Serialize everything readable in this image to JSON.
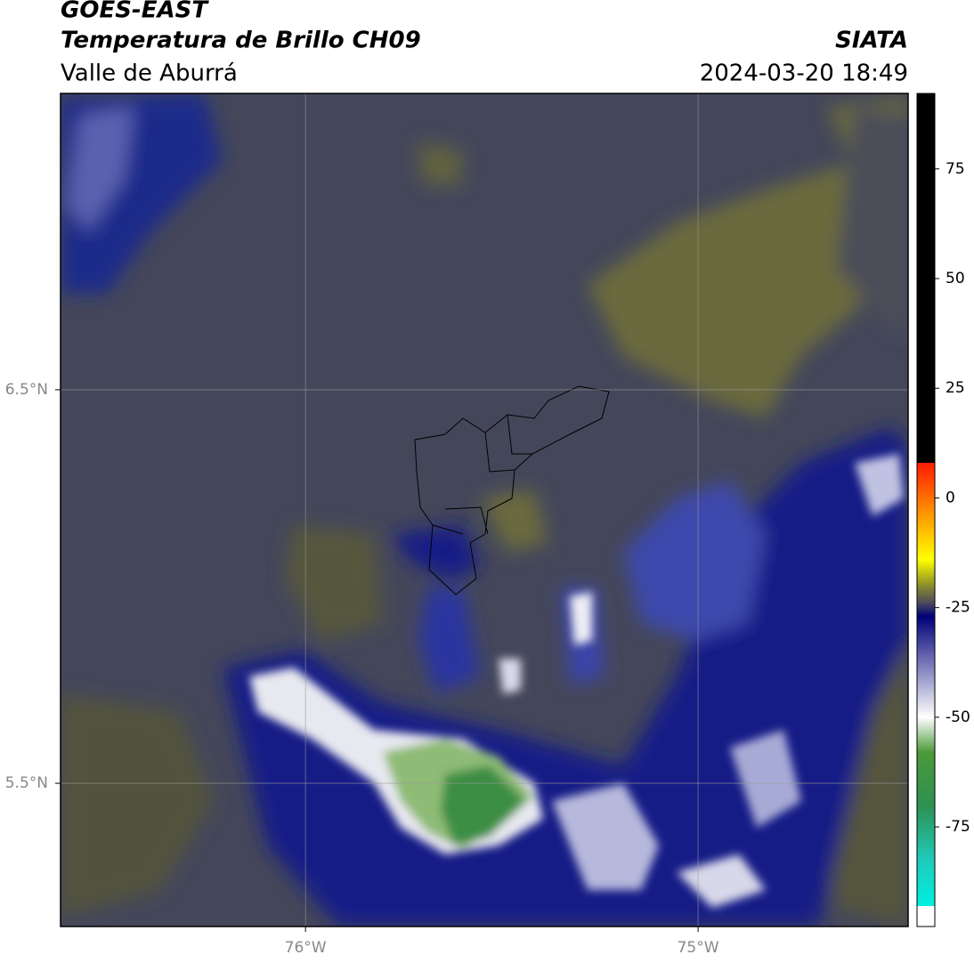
{
  "header": {
    "title": "GOES-EAST",
    "subtitle": "Temperatura de Brillo CH09",
    "region": "Valle de Aburrá",
    "source": "SIATA",
    "timestamp": "2024-03-20 18:49"
  },
  "chart_data": {
    "type": "map",
    "xlim": [
      -76.624,
      -74.465
    ],
    "ylim": [
      5.136,
      7.253
    ],
    "xticks": [
      {
        "value": -76,
        "label": "76°W"
      },
      {
        "value": -75,
        "label": "75°W"
      }
    ],
    "yticks": [
      {
        "value": 5.5,
        "label": "5.5°N"
      },
      {
        "value": 6.5,
        "label": "6.5°N"
      }
    ],
    "grid": true,
    "colorbar": {
      "lim": [
        -97.7,
        92.2
      ],
      "ticks": [
        75,
        50,
        25,
        0,
        -25,
        -50,
        -75
      ],
      "stops": [
        {
          "value": 92.2,
          "color": "#000000"
        },
        {
          "value": 8,
          "color": "#000000"
        },
        {
          "value": 8,
          "color": "#ff1a00"
        },
        {
          "value": -4,
          "color": "#ff9a00"
        },
        {
          "value": -14,
          "color": "#ffff00"
        },
        {
          "value": -20,
          "color": "#8c8c2c"
        },
        {
          "value": -24,
          "color": "#4a4a5c"
        },
        {
          "value": -27,
          "color": "#00007a"
        },
        {
          "value": -50,
          "color": "#ffffff"
        },
        {
          "value": -58,
          "color": "#4c9a3a"
        },
        {
          "value": -70,
          "color": "#2e9050"
        },
        {
          "value": -82,
          "color": "#20c8b8"
        },
        {
          "value": -93,
          "color": "#00f0e0"
        },
        {
          "value": -93,
          "color": "#ffffff"
        },
        {
          "value": -97.7,
          "color": "#ffffff"
        }
      ]
    }
  }
}
